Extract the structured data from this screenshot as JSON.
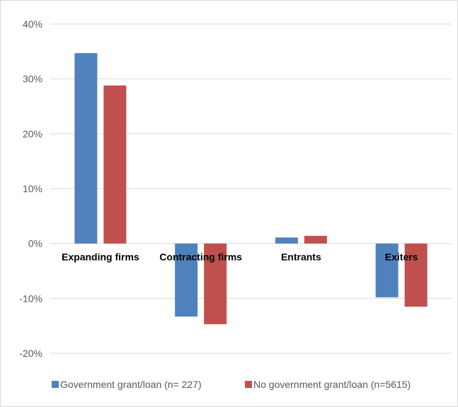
{
  "chart_data": {
    "type": "bar",
    "categories": [
      "Expanding firms",
      "Contracting firms",
      "Entrants",
      "Exiters"
    ],
    "series": [
      {
        "name": "Government grant/loan (n= 227)",
        "color": "#4f81bd",
        "values": [
          34.7,
          -13.3,
          1.1,
          -9.8
        ]
      },
      {
        "name": "No government grant/loan (n=5615)",
        "color": "#c0504d",
        "values": [
          28.8,
          -14.7,
          1.4,
          -11.5
        ]
      }
    ],
    "ylim": [
      -20,
      40
    ],
    "yticks": [
      -20,
      -10,
      0,
      10,
      20,
      30,
      40
    ],
    "ytick_labels": [
      "-20%",
      "-10%",
      "0%",
      "10%",
      "20%",
      "30%",
      "40%"
    ],
    "grid": true,
    "legend": "bottom"
  }
}
